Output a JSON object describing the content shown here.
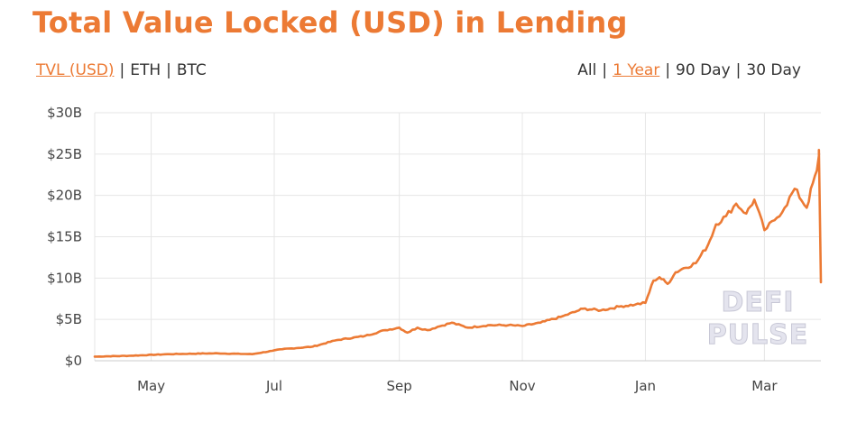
{
  "page": {
    "title": "Total Value Locked (USD) in Lending",
    "accent_color": "#ec7a34"
  },
  "unit_options": [
    {
      "label": "TVL (USD)",
      "active": true
    },
    {
      "label": "ETH",
      "active": false
    },
    {
      "label": "BTC",
      "active": false
    }
  ],
  "range_options": [
    {
      "label": "All",
      "active": false
    },
    {
      "label": "1 Year",
      "active": true
    },
    {
      "label": "90 Day",
      "active": false
    },
    {
      "label": "30 Day",
      "active": false
    }
  ],
  "watermark": [
    "DEFI",
    "PULSE"
  ],
  "chart_data": {
    "type": "line",
    "title": "",
    "xlabel": "",
    "ylabel": "",
    "ylim": [
      0,
      30
    ],
    "yticks": [
      0,
      5,
      10,
      15,
      20,
      25,
      30
    ],
    "ytick_labels": [
      "$0",
      "$5B",
      "$10B",
      "$15B",
      "$20B",
      "$25B",
      "$30B"
    ],
    "xlim": [
      "2020-04-03",
      "2021-03-29"
    ],
    "xticks": [
      "2020-05-01",
      "2020-07-01",
      "2020-09-01",
      "2020-11-01",
      "2021-01-01",
      "2021-03-01"
    ],
    "xtick_labels": [
      "May",
      "Jul",
      "Sep",
      "Nov",
      "Jan",
      "Mar"
    ],
    "grid": true,
    "line_color": "#ec7a34",
    "series": [
      {
        "name": "",
        "x": [
          "2020-04-03",
          "2020-04-20",
          "2020-05-10",
          "2020-06-01",
          "2020-06-20",
          "2020-06-30",
          "2020-07-05",
          "2020-07-20",
          "2020-08-01",
          "2020-08-15",
          "2020-08-25",
          "2020-09-01",
          "2020-09-05",
          "2020-09-10",
          "2020-09-15",
          "2020-09-20",
          "2020-09-27",
          "2020-10-05",
          "2020-10-15",
          "2020-10-25",
          "2020-11-01",
          "2020-11-10",
          "2020-11-20",
          "2020-11-27",
          "2020-12-01",
          "2020-12-10",
          "2020-12-20",
          "2020-12-27",
          "2021-01-01",
          "2021-01-05",
          "2021-01-08",
          "2021-01-12",
          "2021-01-16",
          "2021-01-20",
          "2021-01-26",
          "2021-02-01",
          "2021-02-05",
          "2021-02-10",
          "2021-02-15",
          "2021-02-20",
          "2021-02-24",
          "2021-03-01",
          "2021-03-06",
          "2021-03-11",
          "2021-03-16",
          "2021-03-22",
          "2021-03-25",
          "2021-03-27",
          "2021-03-28",
          "2021-03-28",
          "2021-03-29"
        ],
        "values": [
          0.5,
          0.6,
          0.8,
          0.9,
          0.8,
          1.2,
          1.4,
          1.7,
          2.5,
          3.0,
          3.7,
          4.0,
          3.4,
          4.0,
          3.7,
          4.1,
          4.6,
          4.0,
          4.3,
          4.3,
          4.2,
          4.6,
          5.3,
          5.9,
          6.3,
          6.1,
          6.6,
          6.8,
          7.0,
          9.7,
          10.1,
          9.3,
          10.7,
          11.2,
          11.8,
          14.0,
          16.5,
          17.5,
          19.0,
          17.8,
          19.5,
          15.8,
          17.0,
          18.5,
          20.8,
          18.5,
          21.5,
          23.0,
          24.8,
          25.5,
          9.5
        ]
      }
    ]
  }
}
